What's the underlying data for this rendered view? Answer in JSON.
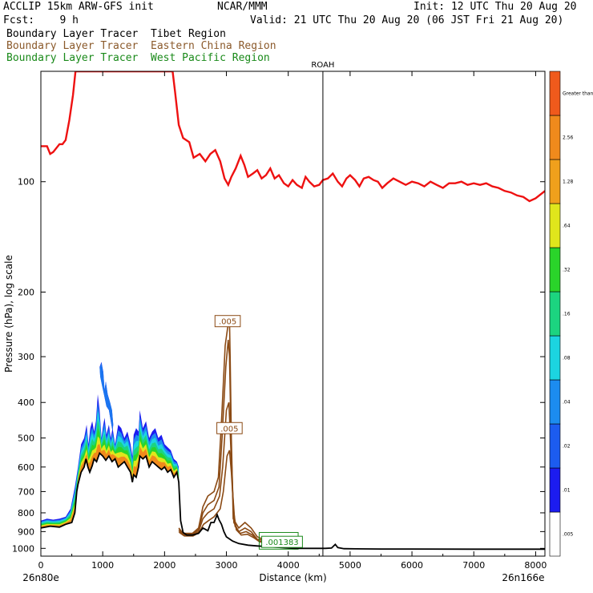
{
  "header": {
    "model": "ACCLIP 15km ARW-GFS init",
    "org": "NCAR/MMM",
    "init": "Init: 12 UTC Thu 20 Aug 20",
    "fcst": "Fcst:    9 h",
    "valid": "Valid: 21 UTC Thu 20 Aug 20 (06 JST Fri 21 Aug 20)"
  },
  "legend": [
    {
      "label": "Boundary Layer Tracer  Tibet Region",
      "color": "#000000"
    },
    {
      "label": "Boundary Layer Tracer  Eastern China Region",
      "color": "#8B5A2B"
    },
    {
      "label": "Boundary Layer Tracer  West Pacific Region",
      "color": "#1a8a1a"
    }
  ],
  "colors": {
    "tropopause": "#ee1111",
    "terrain": "#000000",
    "eastern_china": "#8B4A14",
    "west_pacific": "#1a8a1a"
  },
  "chart_data": {
    "type": "area",
    "xlabel": "Distance (km)",
    "ylabel": "Pressure (hPa), log scale",
    "xlim": [
      0,
      8150
    ],
    "x_ticks": [
      0,
      1000,
      2000,
      3000,
      4000,
      5000,
      6000,
      7000,
      8000
    ],
    "ylim": [
      1050,
      50
    ],
    "y_scale": "log",
    "y_ticks": [
      100,
      200,
      300,
      400,
      500,
      600,
      700,
      800,
      900,
      1000
    ],
    "endpoints": {
      "left": "26n80e",
      "right": "26n166e"
    },
    "marker": {
      "label": "ROAH",
      "x": 4560
    },
    "contour_labels": [
      {
        "text": ".005",
        "x": 3020,
        "p": 240
      },
      {
        "text": ".005",
        "x": 3050,
        "p": 470
      },
      {
        "text": ".001383",
        "x": 3900,
        "p": 960
      }
    ],
    "tropopause_line": [
      [
        0,
        80
      ],
      [
        100,
        80
      ],
      [
        150,
        84
      ],
      [
        200,
        83
      ],
      [
        300,
        79
      ],
      [
        350,
        79
      ],
      [
        400,
        77
      ],
      [
        460,
        68
      ],
      [
        520,
        58
      ],
      [
        560,
        50
      ],
      [
        2130,
        50
      ],
      [
        2170,
        57
      ],
      [
        2230,
        70
      ],
      [
        2300,
        76
      ],
      [
        2400,
        78
      ],
      [
        2470,
        86
      ],
      [
        2570,
        84
      ],
      [
        2660,
        88
      ],
      [
        2740,
        84
      ],
      [
        2820,
        82
      ],
      [
        2900,
        88
      ],
      [
        2970,
        98
      ],
      [
        3030,
        102
      ],
      [
        3080,
        97
      ],
      [
        3150,
        92
      ],
      [
        3230,
        85
      ],
      [
        3290,
        90
      ],
      [
        3350,
        97
      ],
      [
        3430,
        95
      ],
      [
        3500,
        93
      ],
      [
        3570,
        98
      ],
      [
        3640,
        96
      ],
      [
        3710,
        92
      ],
      [
        3780,
        98
      ],
      [
        3850,
        96
      ],
      [
        3930,
        101
      ],
      [
        4000,
        103
      ],
      [
        4070,
        99
      ],
      [
        4140,
        102
      ],
      [
        4220,
        104
      ],
      [
        4280,
        97
      ],
      [
        4340,
        100
      ],
      [
        4420,
        103
      ],
      [
        4500,
        102
      ],
      [
        4560,
        99
      ],
      [
        4640,
        98
      ],
      [
        4720,
        95
      ],
      [
        4800,
        100
      ],
      [
        4870,
        103
      ],
      [
        4940,
        98
      ],
      [
        5000,
        96
      ],
      [
        5080,
        99
      ],
      [
        5150,
        103
      ],
      [
        5220,
        98
      ],
      [
        5300,
        97
      ],
      [
        5380,
        99
      ],
      [
        5450,
        100
      ],
      [
        5520,
        104
      ],
      [
        5600,
        101
      ],
      [
        5700,
        98
      ],
      [
        5800,
        100
      ],
      [
        5900,
        102
      ],
      [
        6000,
        100
      ],
      [
        6100,
        101
      ],
      [
        6200,
        103
      ],
      [
        6300,
        100
      ],
      [
        6400,
        102
      ],
      [
        6500,
        104
      ],
      [
        6600,
        101
      ],
      [
        6700,
        101
      ],
      [
        6800,
        100
      ],
      [
        6900,
        102
      ],
      [
        7000,
        101
      ],
      [
        7100,
        102
      ],
      [
        7200,
        101
      ],
      [
        7300,
        103
      ],
      [
        7400,
        104
      ],
      [
        7500,
        106
      ],
      [
        7600,
        107
      ],
      [
        7700,
        109
      ],
      [
        7800,
        110
      ],
      [
        7900,
        113
      ],
      [
        8000,
        111
      ],
      [
        8150,
        106
      ]
    ],
    "terrain_line": [
      [
        0,
        880
      ],
      [
        150,
        870
      ],
      [
        300,
        875
      ],
      [
        400,
        860
      ],
      [
        500,
        850
      ],
      [
        550,
        800
      ],
      [
        580,
        700
      ],
      [
        600,
        670
      ],
      [
        650,
        620
      ],
      [
        700,
        600
      ],
      [
        730,
        570
      ],
      [
        760,
        600
      ],
      [
        790,
        620
      ],
      [
        830,
        595
      ],
      [
        860,
        570
      ],
      [
        900,
        580
      ],
      [
        950,
        550
      ],
      [
        1000,
        560
      ],
      [
        1050,
        575
      ],
      [
        1100,
        560
      ],
      [
        1150,
        580
      ],
      [
        1200,
        570
      ],
      [
        1250,
        600
      ],
      [
        1300,
        590
      ],
      [
        1350,
        580
      ],
      [
        1400,
        600
      ],
      [
        1450,
        620
      ],
      [
        1480,
        660
      ],
      [
        1500,
        630
      ],
      [
        1540,
        640
      ],
      [
        1580,
        600
      ],
      [
        1600,
        560
      ],
      [
        1650,
        570
      ],
      [
        1700,
        560
      ],
      [
        1750,
        600
      ],
      [
        1800,
        580
      ],
      [
        1850,
        590
      ],
      [
        1900,
        600
      ],
      [
        1950,
        610
      ],
      [
        2000,
        600
      ],
      [
        2050,
        620
      ],
      [
        2100,
        610
      ],
      [
        2150,
        640
      ],
      [
        2200,
        620
      ],
      [
        2230,
        660
      ],
      [
        2260,
        840
      ],
      [
        2300,
        905
      ],
      [
        2360,
        920
      ],
      [
        2450,
        920
      ],
      [
        2550,
        910
      ],
      [
        2620,
        880
      ],
      [
        2700,
        895
      ],
      [
        2750,
        850
      ],
      [
        2800,
        850
      ],
      [
        2850,
        810
      ],
      [
        2880,
        835
      ],
      [
        2920,
        860
      ],
      [
        2960,
        900
      ],
      [
        3000,
        930
      ],
      [
        3100,
        955
      ],
      [
        3200,
        970
      ],
      [
        3350,
        980
      ],
      [
        3500,
        985
      ],
      [
        3700,
        990
      ],
      [
        3900,
        995
      ],
      [
        4100,
        1000
      ],
      [
        4300,
        1000
      ],
      [
        4500,
        1000
      ],
      [
        4600,
        1000
      ],
      [
        4700,
        998
      ],
      [
        4760,
        975
      ],
      [
        4800,
        995
      ],
      [
        4900,
        1002
      ],
      [
        5100,
        1003
      ],
      [
        5500,
        1004
      ],
      [
        6000,
        1004
      ],
      [
        7000,
        1005
      ],
      [
        8150,
        1005
      ]
    ],
    "eastern_china_lines": [
      [
        [
          2230,
          880
        ],
        [
          2300,
          910
        ],
        [
          2450,
          910
        ],
        [
          2550,
          880
        ],
        [
          2620,
          770
        ],
        [
          2700,
          720
        ],
        [
          2800,
          700
        ],
        [
          2870,
          640
        ],
        [
          2920,
          450
        ],
        [
          2980,
          280
        ],
        [
          3020,
          250
        ],
        [
          3050,
          240
        ],
        [
          3060,
          300
        ],
        [
          3080,
          500
        ],
        [
          3110,
          830
        ],
        [
          3200,
          880
        ],
        [
          3300,
          850
        ],
        [
          3400,
          880
        ],
        [
          3500,
          930
        ],
        [
          3600,
          945
        ],
        [
          3800,
          950
        ],
        [
          4000,
          955
        ]
      ],
      [
        [
          2230,
          890
        ],
        [
          2300,
          915
        ],
        [
          2450,
          915
        ],
        [
          2550,
          890
        ],
        [
          2620,
          800
        ],
        [
          2700,
          760
        ],
        [
          2800,
          740
        ],
        [
          2880,
          680
        ],
        [
          2930,
          500
        ],
        [
          2990,
          320
        ],
        [
          3030,
          270
        ],
        [
          3050,
          300
        ],
        [
          3080,
          550
        ],
        [
          3120,
          850
        ],
        [
          3200,
          900
        ],
        [
          3300,
          880
        ],
        [
          3400,
          900
        ],
        [
          3500,
          945
        ],
        [
          3800,
          955
        ],
        [
          4000,
          960
        ]
      ],
      [
        [
          2230,
          900
        ],
        [
          2300,
          920
        ],
        [
          2450,
          920
        ],
        [
          2550,
          900
        ],
        [
          2620,
          830
        ],
        [
          2700,
          800
        ],
        [
          2800,
          780
        ],
        [
          2890,
          720
        ],
        [
          2940,
          600
        ],
        [
          3000,
          420
        ],
        [
          3040,
          400
        ],
        [
          3060,
          480
        ],
        [
          3100,
          700
        ],
        [
          3140,
          870
        ],
        [
          3220,
          910
        ],
        [
          3320,
          900
        ],
        [
          3420,
          920
        ],
        [
          3520,
          955
        ],
        [
          3800,
          962
        ],
        [
          4000,
          965
        ]
      ],
      [
        [
          2240,
          905
        ],
        [
          2320,
          925
        ],
        [
          2460,
          925
        ],
        [
          2560,
          905
        ],
        [
          2630,
          860
        ],
        [
          2710,
          840
        ],
        [
          2800,
          820
        ],
        [
          2900,
          780
        ],
        [
          2950,
          700
        ],
        [
          3010,
          560
        ],
        [
          3050,
          540
        ],
        [
          3080,
          620
        ],
        [
          3120,
          800
        ],
        [
          3160,
          890
        ],
        [
          3240,
          920
        ],
        [
          3340,
          915
        ],
        [
          3440,
          935
        ],
        [
          3540,
          960
        ],
        [
          3800,
          968
        ],
        [
          4000,
          970
        ]
      ]
    ],
    "west_pacific_box": {
      "x0": 3530,
      "x1": 4160,
      "p0": 1005,
      "p1": 905
    },
    "tracer_levels": [
      ".005",
      ".01",
      ".02",
      ".04",
      ".08",
      ".16",
      ".32",
      ".64",
      "1.28",
      "2.56",
      "Greater than"
    ],
    "tracer_colors": [
      "#ffffff",
      "#1c1cf0",
      "#1c5cf0",
      "#1c8cf0",
      "#1cd4e0",
      "#1cd480",
      "#2ad42a",
      "#e0e61c",
      "#f0a01c",
      "#f08a1c",
      "#f05a1c"
    ],
    "tracer_band_top": [
      [
        0,
        840
      ],
      [
        100,
        830
      ],
      [
        200,
        835
      ],
      [
        300,
        830
      ],
      [
        400,
        820
      ],
      [
        480,
        780
      ],
      [
        550,
        680
      ],
      [
        600,
        600
      ],
      [
        650,
        520
      ],
      [
        700,
        500
      ],
      [
        740,
        460
      ],
      [
        770,
        520
      ],
      [
        800,
        470
      ],
      [
        830,
        450
      ],
      [
        860,
        480
      ],
      [
        890,
        450
      ],
      [
        920,
        380
      ],
      [
        950,
        420
      ],
      [
        980,
        500
      ],
      [
        1000,
        470
      ],
      [
        1030,
        440
      ],
      [
        1060,
        490
      ],
      [
        1100,
        460
      ],
      [
        1130,
        500
      ],
      [
        1160,
        470
      ],
      [
        1200,
        520
      ],
      [
        1250,
        460
      ],
      [
        1300,
        470
      ],
      [
        1350,
        500
      ],
      [
        1400,
        480
      ],
      [
        1450,
        520
      ],
      [
        1480,
        560
      ],
      [
        1500,
        490
      ],
      [
        1540,
        470
      ],
      [
        1580,
        480
      ],
      [
        1600,
        420
      ],
      [
        1650,
        470
      ],
      [
        1700,
        450
      ],
      [
        1750,
        500
      ],
      [
        1800,
        480
      ],
      [
        1850,
        470
      ],
      [
        1900,
        500
      ],
      [
        1950,
        490
      ],
      [
        2000,
        520
      ],
      [
        2050,
        530
      ],
      [
        2100,
        540
      ],
      [
        2150,
        570
      ],
      [
        2200,
        580
      ],
      [
        2230,
        600
      ]
    ],
    "tracer_plume": [
      [
        950,
        320
      ],
      [
        980,
        310
      ],
      [
        1010,
        330
      ],
      [
        1030,
        370
      ],
      [
        1050,
        350
      ],
      [
        1080,
        380
      ],
      [
        1120,
        400
      ],
      [
        1150,
        420
      ],
      [
        1170,
        460
      ],
      [
        1160,
        480
      ],
      [
        1130,
        450
      ],
      [
        1100,
        420
      ],
      [
        1060,
        410
      ],
      [
        1020,
        380
      ],
      [
        990,
        360
      ],
      [
        960,
        340
      ]
    ]
  }
}
